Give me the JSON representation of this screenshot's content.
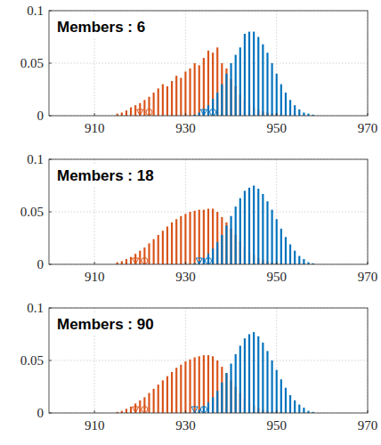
{
  "chart_data": [
    {
      "type": "bar",
      "title": "Members : 6",
      "xlim": [
        900,
        970
      ],
      "xticks": [
        910,
        930,
        950,
        970
      ],
      "ylim": [
        0,
        0.1
      ],
      "yticks": [
        0,
        0.05,
        0.1
      ],
      "grid": true,
      "series": [
        {
          "type": "bar",
          "color": "#d95319",
          "x": [
            915,
            916,
            917,
            918,
            919,
            920,
            921,
            922,
            923,
            924,
            925,
            926,
            927,
            928,
            929,
            930,
            931,
            932,
            933,
            934,
            935,
            936,
            937,
            938,
            939,
            940,
            941,
            942,
            943,
            944,
            945,
            946,
            947,
            948,
            949,
            950,
            951,
            952
          ],
          "values": [
            0.002,
            0.003,
            0.005,
            0.008,
            0.01,
            0.012,
            0.015,
            0.018,
            0.022,
            0.026,
            0.03,
            0.028,
            0.033,
            0.038,
            0.036,
            0.042,
            0.045,
            0.05,
            0.048,
            0.055,
            0.062,
            0.06,
            0.065,
            0.05,
            0.045,
            0.035,
            0.028,
            0.02,
            0.015,
            0.01,
            0.008,
            0.006,
            0.004,
            0.003,
            0.002,
            0.002,
            0.001,
            0.001
          ]
        },
        {
          "type": "bar",
          "color": "#0072bd",
          "x": [
            932,
            933,
            934,
            935,
            936,
            937,
            938,
            939,
            940,
            941,
            942,
            943,
            944,
            945,
            946,
            947,
            948,
            949,
            950,
            951,
            952,
            953,
            954,
            955,
            956,
            957,
            958
          ],
          "values": [
            0.001,
            0.003,
            0.006,
            0.01,
            0.016,
            0.022,
            0.03,
            0.04,
            0.05,
            0.058,
            0.065,
            0.078,
            0.08,
            0.08,
            0.075,
            0.068,
            0.06,
            0.05,
            0.04,
            0.03,
            0.022,
            0.015,
            0.01,
            0.006,
            0.003,
            0.002,
            0.001
          ]
        },
        {
          "type": "scatter",
          "marker": "triangle-down",
          "color": "#d95319",
          "x": [
            920
          ],
          "values": [
            0
          ]
        },
        {
          "type": "scatter",
          "marker": "circle",
          "color": "#d95319",
          "x": [
            922
          ],
          "values": [
            0
          ]
        },
        {
          "type": "scatter",
          "marker": "triangle-down",
          "color": "#0072bd",
          "x": [
            934
          ],
          "values": [
            0
          ]
        },
        {
          "type": "scatter",
          "marker": "circle",
          "color": "#0072bd",
          "x": [
            936
          ],
          "values": [
            0
          ]
        }
      ]
    },
    {
      "type": "bar",
      "title": "Members : 18",
      "xlim": [
        900,
        970
      ],
      "xticks": [
        910,
        930,
        950,
        970
      ],
      "ylim": [
        0,
        0.1
      ],
      "yticks": [
        0,
        0.05,
        0.1
      ],
      "grid": true,
      "series": [
        {
          "type": "bar",
          "color": "#d95319",
          "x": [
            915,
            916,
            917,
            918,
            919,
            920,
            921,
            922,
            923,
            924,
            925,
            926,
            927,
            928,
            929,
            930,
            931,
            932,
            933,
            934,
            935,
            936,
            937,
            938,
            939,
            940,
            941,
            942,
            943,
            944,
            945,
            946,
            947,
            948,
            949,
            950,
            951,
            952
          ],
          "values": [
            0.002,
            0.003,
            0.005,
            0.007,
            0.01,
            0.013,
            0.016,
            0.02,
            0.024,
            0.028,
            0.032,
            0.036,
            0.04,
            0.043,
            0.046,
            0.048,
            0.05,
            0.051,
            0.052,
            0.052,
            0.053,
            0.053,
            0.05,
            0.045,
            0.04,
            0.034,
            0.028,
            0.022,
            0.017,
            0.012,
            0.009,
            0.006,
            0.004,
            0.003,
            0.002,
            0.001,
            0.001,
            0.001
          ]
        },
        {
          "type": "bar",
          "color": "#0072bd",
          "x": [
            932,
            933,
            934,
            935,
            936,
            937,
            938,
            939,
            940,
            941,
            942,
            943,
            944,
            945,
            946,
            947,
            948,
            949,
            950,
            951,
            952,
            953,
            954,
            955,
            956,
            957,
            958
          ],
          "values": [
            0.001,
            0.003,
            0.006,
            0.01,
            0.015,
            0.021,
            0.028,
            0.037,
            0.046,
            0.055,
            0.063,
            0.07,
            0.073,
            0.075,
            0.072,
            0.067,
            0.06,
            0.052,
            0.043,
            0.034,
            0.026,
            0.019,
            0.013,
            0.008,
            0.005,
            0.002,
            0.001
          ]
        },
        {
          "type": "scatter",
          "marker": "triangle-down",
          "color": "#d95319",
          "x": [
            919
          ],
          "values": [
            0
          ]
        },
        {
          "type": "scatter",
          "marker": "circle",
          "color": "#d95319",
          "x": [
            921
          ],
          "values": [
            0
          ]
        },
        {
          "type": "scatter",
          "marker": "triangle-down",
          "color": "#0072bd",
          "x": [
            933
          ],
          "values": [
            0
          ]
        },
        {
          "type": "scatter",
          "marker": "circle",
          "color": "#0072bd",
          "x": [
            935
          ],
          "values": [
            0
          ]
        }
      ]
    },
    {
      "type": "bar",
      "title": "Members : 90",
      "xlim": [
        900,
        970
      ],
      "xticks": [
        910,
        930,
        950,
        970
      ],
      "ylim": [
        0,
        0.1
      ],
      "yticks": [
        0,
        0.05,
        0.1
      ],
      "grid": true,
      "series": [
        {
          "type": "bar",
          "color": "#d95319",
          "x": [
            915,
            916,
            917,
            918,
            919,
            920,
            921,
            922,
            923,
            924,
            925,
            926,
            927,
            928,
            929,
            930,
            931,
            932,
            933,
            934,
            935,
            936,
            937,
            938,
            939,
            940,
            941,
            942,
            943,
            944,
            945,
            946,
            947,
            948,
            949,
            950,
            951,
            952
          ],
          "values": [
            0.001,
            0.002,
            0.004,
            0.006,
            0.009,
            0.012,
            0.015,
            0.019,
            0.023,
            0.027,
            0.031,
            0.035,
            0.039,
            0.043,
            0.046,
            0.049,
            0.051,
            0.053,
            0.054,
            0.055,
            0.055,
            0.054,
            0.05,
            0.044,
            0.038,
            0.031,
            0.025,
            0.019,
            0.014,
            0.01,
            0.007,
            0.005,
            0.003,
            0.002,
            0.001,
            0.001,
            0.001,
            0.001
          ]
        },
        {
          "type": "bar",
          "color": "#0072bd",
          "x": [
            932,
            933,
            934,
            935,
            936,
            937,
            938,
            939,
            940,
            941,
            942,
            943,
            944,
            945,
            946,
            947,
            948,
            949,
            950,
            951,
            952,
            953,
            954,
            955,
            956,
            957,
            958
          ],
          "values": [
            0.001,
            0.003,
            0.006,
            0.01,
            0.015,
            0.021,
            0.029,
            0.038,
            0.047,
            0.056,
            0.064,
            0.071,
            0.075,
            0.077,
            0.073,
            0.067,
            0.059,
            0.05,
            0.041,
            0.032,
            0.024,
            0.017,
            0.012,
            0.008,
            0.005,
            0.002,
            0.001
          ]
        },
        {
          "type": "scatter",
          "marker": "triangle-down",
          "color": "#d95319",
          "x": [
            919
          ],
          "values": [
            0
          ]
        },
        {
          "type": "scatter",
          "marker": "circle",
          "color": "#d95319",
          "x": [
            921
          ],
          "values": [
            0
          ]
        },
        {
          "type": "scatter",
          "marker": "triangle-down",
          "color": "#0072bd",
          "x": [
            932
          ],
          "values": [
            0
          ]
        },
        {
          "type": "scatter",
          "marker": "circle",
          "color": "#0072bd",
          "x": [
            934
          ],
          "values": [
            0
          ]
        }
      ]
    }
  ]
}
